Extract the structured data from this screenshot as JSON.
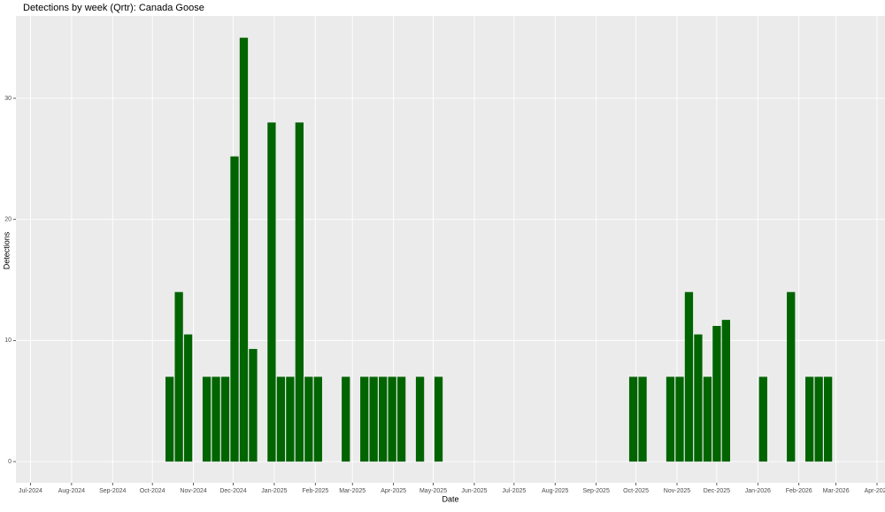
{
  "chart_data": {
    "type": "bar",
    "title": "Detections by week (Qrtr): Canada Goose",
    "x_label": "Date",
    "y_label": "Detections",
    "color": "#006400",
    "grid": true,
    "x": [
      "2024-10-14",
      "2024-10-21",
      "2024-10-28",
      "2024-11-11",
      "2024-11-18",
      "2024-11-25",
      "2024-12-02",
      "2024-12-09",
      "2024-12-16",
      "2024-12-30",
      "2025-01-06",
      "2025-01-13",
      "2025-01-20",
      "2025-01-27",
      "2025-02-03",
      "2025-02-24",
      "2025-03-10",
      "2025-03-17",
      "2025-03-24",
      "2025-03-31",
      "2025-04-07",
      "2025-04-21",
      "2025-05-05",
      "2025-09-29",
      "2025-10-06",
      "2025-10-27",
      "2025-11-03",
      "2025-11-10",
      "2025-11-17",
      "2025-11-24",
      "2025-12-01",
      "2025-12-08",
      "2026-01-05",
      "2026-01-26",
      "2026-02-09",
      "2026-02-16",
      "2026-02-23"
    ],
    "values": [
      7,
      14,
      10.5,
      7,
      7,
      7,
      25.2,
      35,
      9.3,
      28,
      7,
      7,
      28,
      7,
      7,
      7,
      7,
      7,
      7,
      7,
      7,
      7,
      7,
      7,
      7,
      7,
      7,
      14,
      10.5,
      7,
      11.2,
      11.7,
      7,
      14,
      7,
      7,
      7
    ],
    "xlim": [
      "2024-06-20",
      "2026-04-07"
    ],
    "xticks": [
      {
        "value": "2024-07-01",
        "label": "Jul-2024"
      },
      {
        "value": "2024-08-01",
        "label": "Aug-2024"
      },
      {
        "value": "2024-09-01",
        "label": "Sep-2024"
      },
      {
        "value": "2024-10-01",
        "label": "Oct-2024"
      },
      {
        "value": "2024-11-01",
        "label": "Nov-2024"
      },
      {
        "value": "2024-12-01",
        "label": "Dec-2024"
      },
      {
        "value": "2025-01-01",
        "label": "Jan-2025"
      },
      {
        "value": "2025-02-01",
        "label": "Feb-2025"
      },
      {
        "value": "2025-03-01",
        "label": "Mar-2025"
      },
      {
        "value": "2025-04-01",
        "label": "Apr-2025"
      },
      {
        "value": "2025-05-01",
        "label": "May-2025"
      },
      {
        "value": "2025-06-01",
        "label": "Jun-2025"
      },
      {
        "value": "2025-07-01",
        "label": "Jul-2025"
      },
      {
        "value": "2025-08-01",
        "label": "Aug-2025"
      },
      {
        "value": "2025-09-01",
        "label": "Sep-2025"
      },
      {
        "value": "2025-10-01",
        "label": "Oct-2025"
      },
      {
        "value": "2025-11-01",
        "label": "Nov-2025"
      },
      {
        "value": "2025-12-01",
        "label": "Dec-2025"
      },
      {
        "value": "2026-01-01",
        "label": "Jan-2026"
      },
      {
        "value": "2026-02-01",
        "label": "Feb-2026"
      },
      {
        "value": "2026-03-01",
        "label": "Mar-2026"
      },
      {
        "value": "2026-04-01",
        "label": "Apr-2026"
      }
    ],
    "ylim": [
      -1.75,
      36.8
    ],
    "yticks": [
      0,
      10,
      20,
      30
    ]
  }
}
